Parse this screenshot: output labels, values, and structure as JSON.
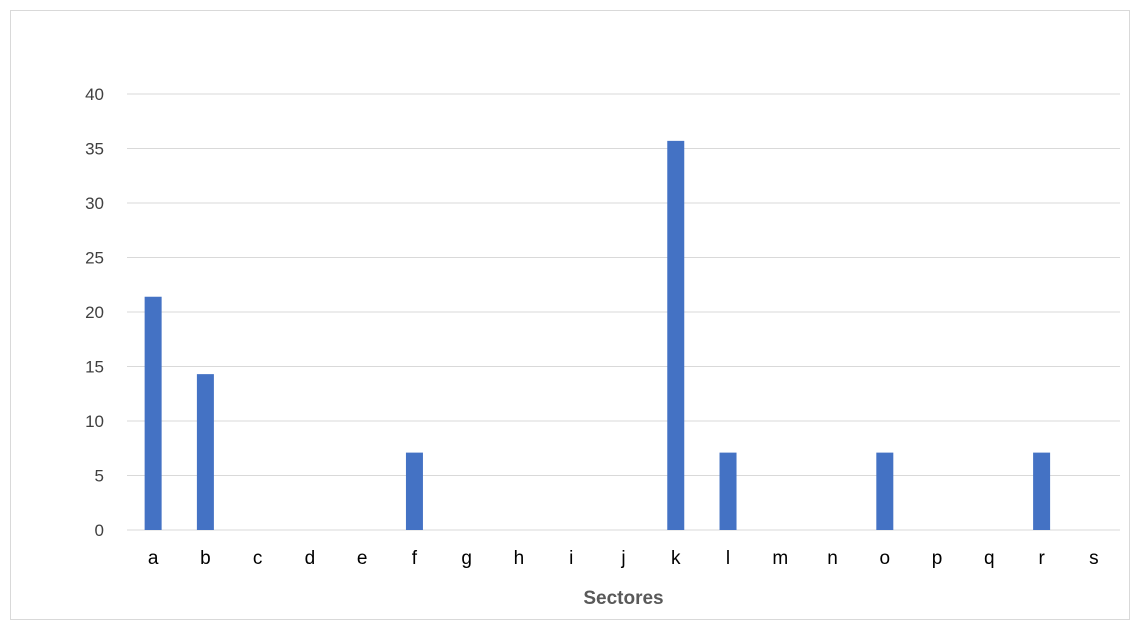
{
  "chart_data": {
    "type": "bar",
    "categories": [
      "a",
      "b",
      "c",
      "d",
      "e",
      "f",
      "g",
      "h",
      "i",
      "j",
      "k",
      "l",
      "m",
      "n",
      "o",
      "p",
      "q",
      "r",
      "s"
    ],
    "values": [
      21.4,
      14.3,
      0,
      0,
      0,
      7.1,
      0,
      0,
      0,
      0,
      35.7,
      7.1,
      0,
      0,
      7.1,
      0,
      0,
      7.1,
      0
    ],
    "title": "",
    "xlabel": "Sectores",
    "ylabel": "",
    "ylim": [
      0,
      40
    ],
    "yticks": [
      0,
      5,
      10,
      15,
      20,
      25,
      30,
      35,
      40
    ],
    "grid": true,
    "bar_color": "#4472c4"
  }
}
